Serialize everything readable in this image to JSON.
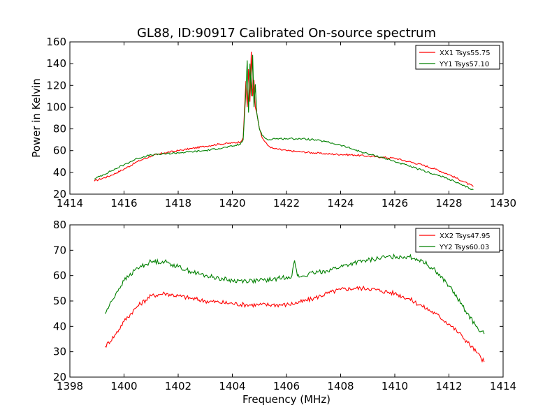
{
  "figure_title": "GL88, ID:90917 Calibrated On-source spectrum",
  "colors": {
    "red": "#ff0000",
    "green": "#008000",
    "axis": "#000000"
  },
  "chart_data": [
    {
      "type": "line",
      "title": "GL88, ID:90917 Calibrated On-source spectrum",
      "xlabel": "",
      "ylabel": "Power in Kelvin",
      "xlim": [
        1414,
        1430
      ],
      "ylim": [
        20,
        160
      ],
      "xticks": [
        "1414",
        "1416",
        "1418",
        "1420",
        "1422",
        "1424",
        "1426",
        "1428",
        "1430"
      ],
      "yticks": [
        "20",
        "40",
        "60",
        "80",
        "100",
        "120",
        "140",
        "160"
      ],
      "grid": false,
      "legend_position": "top-right",
      "series": [
        {
          "name": "XX1 Tsys55.75",
          "color": "#ff0000",
          "x": [
            1414.9,
            1415.5,
            1416,
            1416.5,
            1417,
            1417.5,
            1418,
            1418.5,
            1419,
            1419.5,
            1420,
            1420.3,
            1420.4,
            1420.5,
            1420.55,
            1420.6,
            1420.65,
            1420.7,
            1420.75,
            1420.8,
            1420.85,
            1420.9,
            1421.0,
            1421.1,
            1421.3,
            1421.5,
            1422,
            1422.5,
            1423,
            1423.5,
            1424,
            1424.5,
            1425,
            1425.5,
            1426,
            1426.5,
            1427,
            1427.5,
            1428,
            1428.5,
            1428.9
          ],
          "y": [
            32,
            37,
            43,
            50,
            55,
            58,
            60,
            62,
            64,
            66,
            67,
            68,
            72,
            124,
            100,
            135,
            105,
            151,
            110,
            125,
            100,
            95,
            80,
            72,
            65,
            62,
            60,
            59,
            58,
            57,
            56.5,
            56,
            55,
            54,
            53,
            50,
            47,
            43,
            38,
            32,
            27
          ]
        },
        {
          "name": "YY1 Tsys57.10",
          "color": "#008000",
          "x": [
            1414.9,
            1415.5,
            1416,
            1416.5,
            1417,
            1417.5,
            1418,
            1418.5,
            1419,
            1419.5,
            1420,
            1420.3,
            1420.4,
            1420.5,
            1420.55,
            1420.6,
            1420.65,
            1420.7,
            1420.75,
            1420.8,
            1420.85,
            1420.9,
            1421.0,
            1421.1,
            1421.3,
            1421.5,
            1422,
            1422.5,
            1423,
            1423.5,
            1424,
            1424.5,
            1425,
            1425.5,
            1426,
            1426.5,
            1427,
            1427.5,
            1428,
            1428.5,
            1428.9
          ],
          "y": [
            34,
            41,
            47,
            53,
            56,
            57,
            58,
            59,
            60,
            62,
            64,
            66,
            70,
            115,
            143,
            95,
            140,
            110,
            148,
            100,
            121,
            95,
            80,
            74,
            70,
            71,
            71,
            71,
            70,
            68,
            65,
            61,
            57,
            54,
            50,
            46,
            42,
            38,
            34,
            28,
            24
          ]
        }
      ]
    },
    {
      "type": "line",
      "title": "",
      "xlabel": "Frequency (MHz)",
      "ylabel": "",
      "xlim": [
        1398,
        1414
      ],
      "ylim": [
        20,
        80
      ],
      "xticks": [
        "1398",
        "1400",
        "1402",
        "1404",
        "1406",
        "1408",
        "1410",
        "1412",
        "1414"
      ],
      "yticks": [
        "20",
        "30",
        "40",
        "50",
        "60",
        "70",
        "80"
      ],
      "grid": false,
      "legend_position": "top-right",
      "series": [
        {
          "name": "XX2 Tsys47.95",
          "color": "#ff0000",
          "x": [
            1399.3,
            1399.7,
            1400,
            1400.5,
            1401,
            1401.5,
            1402,
            1402.5,
            1403,
            1403.5,
            1404,
            1404.5,
            1405,
            1405.5,
            1406,
            1406.5,
            1407,
            1407.5,
            1408,
            1408.5,
            1409,
            1409.5,
            1410,
            1410.5,
            1411,
            1411.5,
            1412,
            1412.5,
            1413,
            1413.3
          ],
          "y": [
            32,
            37,
            42,
            48,
            52,
            53,
            52,
            51,
            50,
            49.5,
            49,
            48.5,
            48.5,
            48.5,
            48.5,
            49.5,
            51,
            53,
            54.5,
            55,
            55,
            54,
            53,
            51,
            48,
            45,
            41,
            36,
            30,
            26
          ]
        },
        {
          "name": "YY2 Tsys60.03",
          "color": "#008000",
          "x": [
            1399.3,
            1399.7,
            1400,
            1400.5,
            1401,
            1401.5,
            1402,
            1402.5,
            1403,
            1403.5,
            1404,
            1404.5,
            1405,
            1405.5,
            1406,
            1406.2,
            1406.3,
            1406.4,
            1406.5,
            1407,
            1407.5,
            1408,
            1408.5,
            1409,
            1409.5,
            1410,
            1410.5,
            1411,
            1411.5,
            1412,
            1412.5,
            1413,
            1413.3
          ],
          "y": [
            45,
            53,
            58,
            63,
            65.5,
            65.5,
            63.5,
            61.5,
            60,
            59,
            58,
            58,
            58,
            58.5,
            59.5,
            60,
            66,
            60,
            59.5,
            61,
            62,
            63.5,
            65,
            66,
            67,
            67.5,
            67.5,
            66,
            62,
            56,
            48,
            40,
            37
          ]
        }
      ]
    }
  ]
}
